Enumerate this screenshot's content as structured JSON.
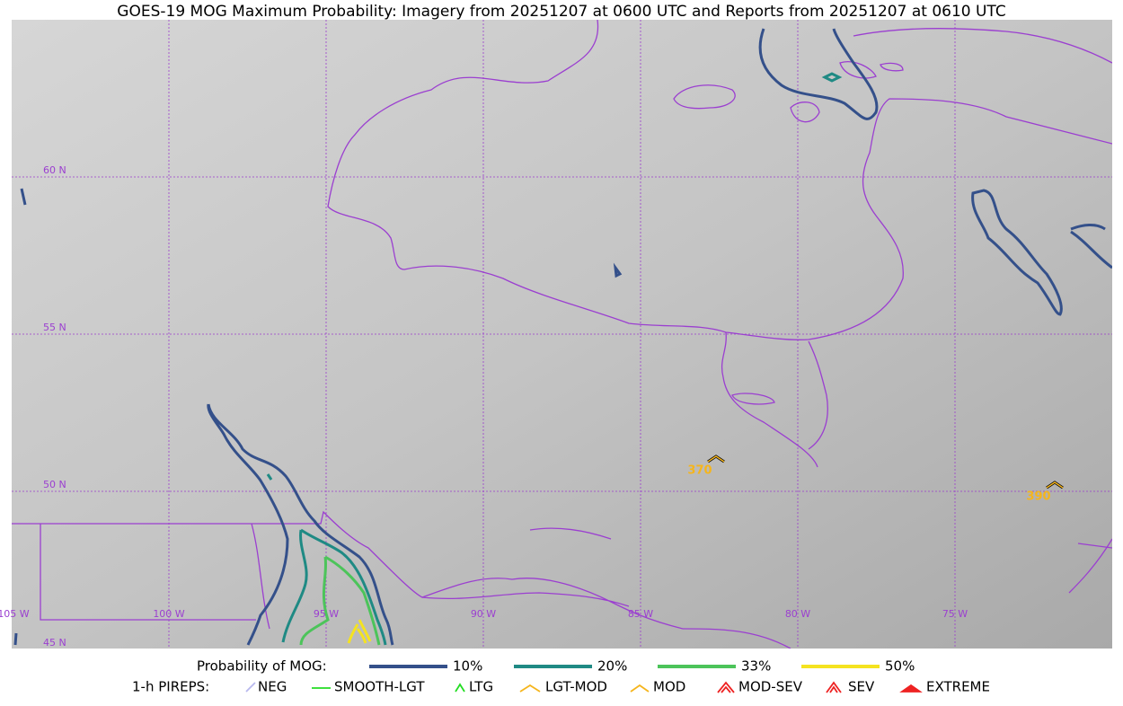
{
  "title": "GOES-19 MOG Maximum Probability: Imagery from 20251207 at 0600 UTC and Reports from 20251207 at 0610 UTC",
  "grid_labels": {
    "latitudes": [
      "60 N",
      "55 N",
      "50 N",
      "45 N"
    ],
    "longitudes": [
      "105 W",
      "100 W",
      "95 W",
      "90 W",
      "85 W",
      "80 W",
      "75 W"
    ]
  },
  "reports": [
    {
      "label": "370"
    },
    {
      "label": "390"
    }
  ],
  "legend": {
    "probability_label": "Probability of MOG:",
    "probability_levels": [
      {
        "label": "10%",
        "color": "#34508a"
      },
      {
        "label": "20%",
        "color": "#1f8a84"
      },
      {
        "label": "33%",
        "color": "#4cc45a"
      },
      {
        "label": "50%",
        "color": "#f5e31f"
      }
    ],
    "pireps_label": "1-h PIREPS:",
    "pirep_types": [
      "NEG",
      "SMOOTH-LGT",
      "LTG",
      "LGT-MOD",
      "MOD",
      "MOD-SEV",
      "SEV",
      "EXTREME"
    ]
  }
}
